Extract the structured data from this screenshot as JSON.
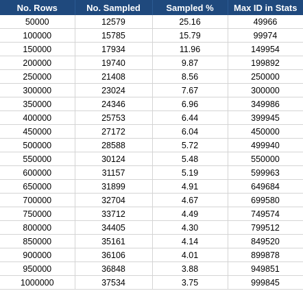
{
  "table": {
    "headers": [
      "No. Rows",
      "No. Sampled",
      "Sampled %",
      "Max ID in Stats"
    ],
    "rows": [
      [
        "50000",
        "12579",
        "25.16",
        "49966"
      ],
      [
        "100000",
        "15785",
        "15.79",
        "99974"
      ],
      [
        "150000",
        "17934",
        "11.96",
        "149954"
      ],
      [
        "200000",
        "19740",
        "9.87",
        "199892"
      ],
      [
        "250000",
        "21408",
        "8.56",
        "250000"
      ],
      [
        "300000",
        "23024",
        "7.67",
        "300000"
      ],
      [
        "350000",
        "24346",
        "6.96",
        "349986"
      ],
      [
        "400000",
        "25753",
        "6.44",
        "399945"
      ],
      [
        "450000",
        "27172",
        "6.04",
        "450000"
      ],
      [
        "500000",
        "28588",
        "5.72",
        "499940"
      ],
      [
        "550000",
        "30124",
        "5.48",
        "550000"
      ],
      [
        "600000",
        "31157",
        "5.19",
        "599963"
      ],
      [
        "650000",
        "31899",
        "4.91",
        "649684"
      ],
      [
        "700000",
        "32704",
        "4.67",
        "699580"
      ],
      [
        "750000",
        "33712",
        "4.49",
        "749574"
      ],
      [
        "800000",
        "34405",
        "4.30",
        "799512"
      ],
      [
        "850000",
        "35161",
        "4.14",
        "849520"
      ],
      [
        "900000",
        "36106",
        "4.01",
        "899878"
      ],
      [
        "950000",
        "36848",
        "3.88",
        "949851"
      ],
      [
        "1000000",
        "37534",
        "3.75",
        "999845"
      ]
    ]
  },
  "colors": {
    "header_background": "#1f497d",
    "header_text": "#ffffff",
    "grid_lines": "#d4d4d4"
  }
}
